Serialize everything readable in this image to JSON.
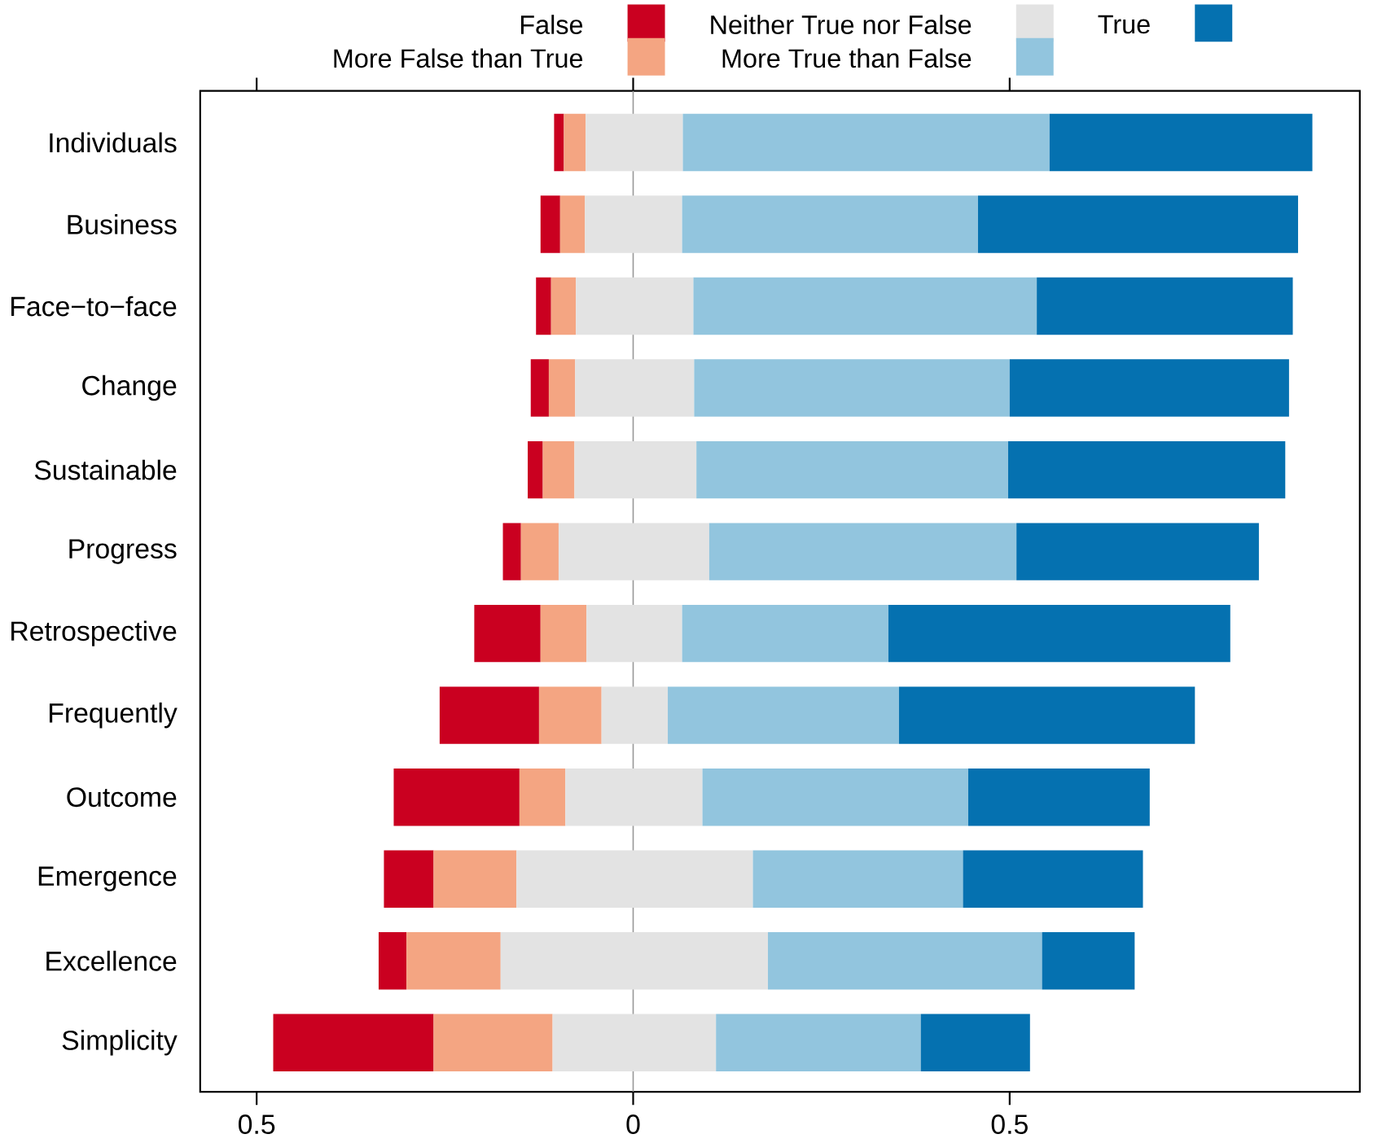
{
  "chart_data": {
    "type": "bar",
    "orientation": "horizontal",
    "categories": [
      "Individuals",
      "Business",
      "Face−to−face",
      "Change",
      "Sustainable",
      "Progress",
      "Retrospective",
      "Frequently",
      "Outcome",
      "Emergence",
      "Excellence",
      "Simplicity"
    ],
    "series": [
      {
        "name": "False",
        "color": "#ca0020",
        "values": [
          0.013,
          0.026,
          0.02,
          0.024,
          0.02,
          0.024,
          0.088,
          0.132,
          0.167,
          0.066,
          0.037,
          0.213
        ],
        "base": [
          -0.105,
          -0.123,
          -0.129,
          -0.136,
          -0.14,
          -0.173,
          -0.211,
          -0.257,
          -0.318,
          -0.331,
          -0.338,
          -0.478
        ]
      },
      {
        "name": "More False than True",
        "color": "#f4a582",
        "values": [
          0.029,
          0.033,
          0.033,
          0.035,
          0.042,
          0.05,
          0.061,
          0.083,
          0.061,
          0.11,
          0.125,
          0.158
        ],
        "base": [
          -0.092,
          -0.097,
          -0.109,
          -0.112,
          -0.12,
          -0.149,
          -0.123,
          -0.125,
          -0.151,
          -0.265,
          -0.301,
          -0.265
        ]
      },
      {
        "name": "Neither True nor False",
        "color": "#e3e3e3",
        "values": [
          0.129,
          0.129,
          0.156,
          0.158,
          0.162,
          0.2,
          0.127,
          0.088,
          0.182,
          0.314,
          0.355,
          0.217
        ],
        "base": [
          -0.063,
          -0.064,
          -0.076,
          -0.077,
          -0.078,
          -0.099,
          -0.062,
          -0.042,
          -0.09,
          -0.155,
          -0.176,
          -0.107
        ]
      },
      {
        "name": "More True than False",
        "color": "#92c5de",
        "values": [
          0.487,
          0.393,
          0.456,
          0.419,
          0.414,
          0.408,
          0.274,
          0.307,
          0.353,
          0.279,
          0.364,
          0.272
        ],
        "base": [
          0.066,
          0.065,
          0.08,
          0.081,
          0.084,
          0.101,
          0.065,
          0.046,
          0.092,
          0.159,
          0.179,
          0.11
        ]
      },
      {
        "name": "True",
        "color": "#0571b0",
        "values": [
          0.349,
          0.425,
          0.34,
          0.371,
          0.368,
          0.322,
          0.454,
          0.393,
          0.241,
          0.239,
          0.123,
          0.145
        ],
        "base": [
          0.553,
          0.458,
          0.536,
          0.5,
          0.498,
          0.509,
          0.339,
          0.353,
          0.445,
          0.438,
          0.543,
          0.382
        ]
      }
    ],
    "xlim": [
      -0.575,
      0.965
    ],
    "xticks": [
      {
        "value": -0.5,
        "label": "0.5"
      },
      0,
      0.5
    ],
    "ref_lines": [
      {
        "axis": "x",
        "value": 0,
        "color": "#999999"
      }
    ],
    "legend": "top"
  }
}
